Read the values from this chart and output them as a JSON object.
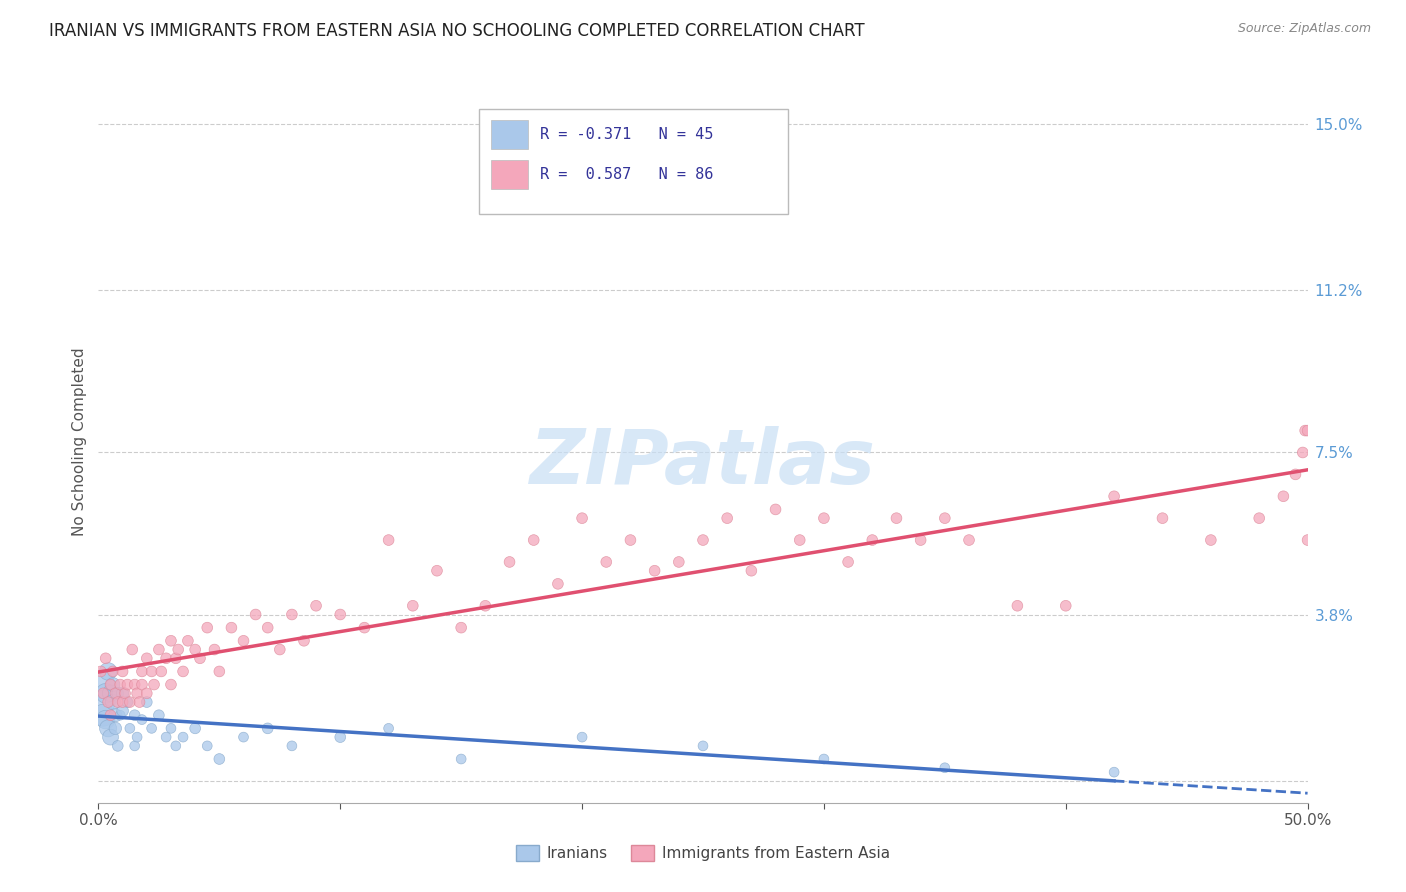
{
  "title": "IRANIAN VS IMMIGRANTS FROM EASTERN ASIA NO SCHOOLING COMPLETED CORRELATION CHART",
  "source": "Source: ZipAtlas.com",
  "ylabel": "No Schooling Completed",
  "xlim": [
    0.0,
    0.5
  ],
  "ylim": [
    -0.005,
    0.16
  ],
  "yticks": [
    0.0,
    0.038,
    0.075,
    0.112,
    0.15
  ],
  "ytick_labels": [
    "",
    "3.8%",
    "7.5%",
    "11.2%",
    "15.0%"
  ],
  "xticks": [
    0.0,
    0.1,
    0.2,
    0.3,
    0.4,
    0.5
  ],
  "xtick_labels": [
    "0.0%",
    "",
    "",
    "",
    "",
    "50.0%"
  ],
  "legend_entries": [
    {
      "label": "Iranians",
      "R": -0.371,
      "N": 45,
      "color": "#aac8ea"
    },
    {
      "label": "Immigrants from Eastern Asia",
      "R": 0.587,
      "N": 86,
      "color": "#f4a7bb"
    }
  ],
  "blue_scatter_color": "#aac8ea",
  "pink_scatter_color": "#f4a7bb",
  "trend_blue_color": "#4472c4",
  "trend_pink_color": "#e05070",
  "watermark": "ZIPatlas",
  "watermark_color": "#c8dff5",
  "background_color": "#ffffff",
  "grid_color": "#cccccc",
  "right_tick_color": "#5b9bd5",
  "title_fontsize": 12,
  "axis_label_fontsize": 11,
  "tick_fontsize": 11,
  "blue_x": [
    0.001,
    0.002,
    0.002,
    0.003,
    0.003,
    0.004,
    0.004,
    0.005,
    0.005,
    0.006,
    0.006,
    0.007,
    0.007,
    0.008,
    0.008,
    0.009,
    0.01,
    0.01,
    0.012,
    0.013,
    0.015,
    0.015,
    0.016,
    0.018,
    0.02,
    0.022,
    0.025,
    0.028,
    0.03,
    0.032,
    0.035,
    0.04,
    0.045,
    0.05,
    0.06,
    0.07,
    0.08,
    0.1,
    0.12,
    0.15,
    0.2,
    0.25,
    0.3,
    0.35,
    0.42
  ],
  "blue_y": [
    0.022,
    0.018,
    0.015,
    0.02,
    0.014,
    0.025,
    0.012,
    0.02,
    0.01,
    0.018,
    0.022,
    0.015,
    0.012,
    0.02,
    0.008,
    0.015,
    0.02,
    0.016,
    0.018,
    0.012,
    0.015,
    0.008,
    0.01,
    0.014,
    0.018,
    0.012,
    0.015,
    0.01,
    0.012,
    0.008,
    0.01,
    0.012,
    0.008,
    0.005,
    0.01,
    0.012,
    0.008,
    0.01,
    0.012,
    0.005,
    0.01,
    0.008,
    0.005,
    0.003,
    0.002
  ],
  "blue_sizes": [
    400,
    300,
    250,
    200,
    180,
    160,
    150,
    140,
    130,
    120,
    100,
    90,
    80,
    70,
    60,
    50,
    80,
    70,
    60,
    50,
    60,
    50,
    50,
    50,
    60,
    50,
    60,
    50,
    50,
    50,
    50,
    60,
    50,
    60,
    50,
    60,
    50,
    60,
    50,
    50,
    50,
    50,
    50,
    50,
    50
  ],
  "pink_x": [
    0.001,
    0.002,
    0.003,
    0.004,
    0.005,
    0.005,
    0.006,
    0.007,
    0.008,
    0.009,
    0.01,
    0.01,
    0.011,
    0.012,
    0.013,
    0.014,
    0.015,
    0.016,
    0.017,
    0.018,
    0.018,
    0.02,
    0.02,
    0.022,
    0.023,
    0.025,
    0.026,
    0.028,
    0.03,
    0.03,
    0.032,
    0.033,
    0.035,
    0.037,
    0.04,
    0.042,
    0.045,
    0.048,
    0.05,
    0.055,
    0.06,
    0.065,
    0.07,
    0.075,
    0.08,
    0.085,
    0.09,
    0.1,
    0.11,
    0.12,
    0.13,
    0.14,
    0.15,
    0.16,
    0.17,
    0.18,
    0.19,
    0.2,
    0.21,
    0.22,
    0.23,
    0.24,
    0.25,
    0.26,
    0.27,
    0.28,
    0.29,
    0.3,
    0.31,
    0.32,
    0.33,
    0.34,
    0.35,
    0.36,
    0.38,
    0.4,
    0.42,
    0.44,
    0.46,
    0.48,
    0.49,
    0.495,
    0.498,
    0.499,
    0.5,
    0.5
  ],
  "pink_y": [
    0.025,
    0.02,
    0.028,
    0.018,
    0.015,
    0.022,
    0.025,
    0.02,
    0.018,
    0.022,
    0.025,
    0.018,
    0.02,
    0.022,
    0.018,
    0.03,
    0.022,
    0.02,
    0.018,
    0.025,
    0.022,
    0.028,
    0.02,
    0.025,
    0.022,
    0.03,
    0.025,
    0.028,
    0.032,
    0.022,
    0.028,
    0.03,
    0.025,
    0.032,
    0.03,
    0.028,
    0.035,
    0.03,
    0.025,
    0.035,
    0.032,
    0.038,
    0.035,
    0.03,
    0.038,
    0.032,
    0.04,
    0.038,
    0.035,
    0.055,
    0.04,
    0.048,
    0.035,
    0.04,
    0.05,
    0.055,
    0.045,
    0.06,
    0.05,
    0.055,
    0.048,
    0.05,
    0.055,
    0.06,
    0.048,
    0.062,
    0.055,
    0.06,
    0.05,
    0.055,
    0.06,
    0.055,
    0.06,
    0.055,
    0.04,
    0.04,
    0.065,
    0.06,
    0.055,
    0.06,
    0.065,
    0.07,
    0.075,
    0.08,
    0.08,
    0.055
  ],
  "pink_sizes": [
    60,
    60,
    60,
    60,
    60,
    60,
    60,
    60,
    60,
    60,
    60,
    60,
    60,
    60,
    60,
    60,
    60,
    60,
    60,
    60,
    60,
    60,
    60,
    60,
    60,
    60,
    60,
    60,
    60,
    60,
    60,
    60,
    60,
    60,
    60,
    60,
    60,
    60,
    60,
    60,
    60,
    60,
    60,
    60,
    60,
    60,
    60,
    60,
    60,
    60,
    60,
    60,
    60,
    60,
    60,
    60,
    60,
    60,
    60,
    60,
    60,
    60,
    60,
    60,
    60,
    60,
    60,
    60,
    60,
    60,
    60,
    60,
    60,
    60,
    60,
    60,
    60,
    60,
    60,
    60,
    60,
    60,
    60,
    60,
    60,
    60
  ]
}
